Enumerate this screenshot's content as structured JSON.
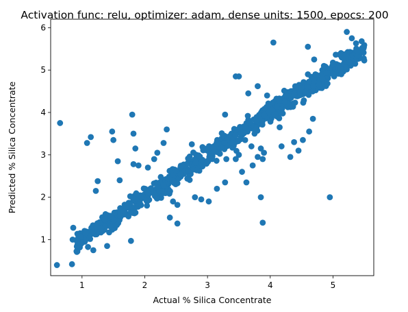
{
  "chart_data": {
    "type": "scatter",
    "title": "Activation func: relu, optimizer: adam, dense units: 1500, epocs: 200",
    "xlabel": "Actual % Silica Concentrate",
    "ylabel": "Predicted % Silica Concentrate",
    "xlim": [
      0.5,
      5.65
    ],
    "ylim": [
      0.15,
      6.2
    ],
    "xticks": [
      1,
      2,
      3,
      4,
      5
    ],
    "yticks": [
      1,
      2,
      3,
      4,
      5,
      6
    ],
    "grid": false,
    "marker_color": "#1f77b4",
    "outliers": [
      [
        0.6,
        0.4
      ],
      [
        0.65,
        3.75
      ],
      [
        0.84,
        0.42
      ],
      [
        0.85,
        1.0
      ],
      [
        0.86,
        1.28
      ],
      [
        1.08,
        3.28
      ],
      [
        1.14,
        3.42
      ],
      [
        1.18,
        0.75
      ],
      [
        1.22,
        2.15
      ],
      [
        1.25,
        2.38
      ],
      [
        1.4,
        0.85
      ],
      [
        1.48,
        3.55
      ],
      [
        1.5,
        3.35
      ],
      [
        1.57,
        2.85
      ],
      [
        1.6,
        2.4
      ],
      [
        1.78,
        0.97
      ],
      [
        1.8,
        3.95
      ],
      [
        1.82,
        3.5
      ],
      [
        1.82,
        2.78
      ],
      [
        1.9,
        2.75
      ],
      [
        1.85,
        3.15
      ],
      [
        2.05,
        2.7
      ],
      [
        2.15,
        2.9
      ],
      [
        2.2,
        3.05
      ],
      [
        2.3,
        3.28
      ],
      [
        2.35,
        3.6
      ],
      [
        2.4,
        1.52
      ],
      [
        2.45,
        1.9
      ],
      [
        2.52,
        1.82
      ],
      [
        2.52,
        1.38
      ],
      [
        2.75,
        3.25
      ],
      [
        2.8,
        2.0
      ],
      [
        2.9,
        1.95
      ],
      [
        3.02,
        1.9
      ],
      [
        3.15,
        2.2
      ],
      [
        3.28,
        2.35
      ],
      [
        3.28,
        3.95
      ],
      [
        3.3,
        2.9
      ],
      [
        3.45,
        2.9
      ],
      [
        3.45,
        4.85
      ],
      [
        3.5,
        4.85
      ],
      [
        3.55,
        2.6
      ],
      [
        3.5,
        3.0
      ],
      [
        3.62,
        2.35
      ],
      [
        3.7,
        3.2
      ],
      [
        3.72,
        2.75
      ],
      [
        3.75,
        3.5
      ],
      [
        3.8,
        2.95
      ],
      [
        3.85,
        3.15
      ],
      [
        3.88,
        2.9
      ],
      [
        3.9,
        3.05
      ],
      [
        3.88,
        1.4
      ],
      [
        3.85,
        2.0
      ],
      [
        3.65,
        4.45
      ],
      [
        3.8,
        4.62
      ],
      [
        3.95,
        4.4
      ],
      [
        4.05,
        5.65
      ],
      [
        4.08,
        3.95
      ],
      [
        4.15,
        3.65
      ],
      [
        4.18,
        3.2
      ],
      [
        4.32,
        2.95
      ],
      [
        4.38,
        3.3
      ],
      [
        4.45,
        3.1
      ],
      [
        4.52,
        3.35
      ],
      [
        4.62,
        3.55
      ],
      [
        4.68,
        3.85
      ],
      [
        4.72,
        4.9
      ],
      [
        4.6,
        4.9
      ],
      [
        4.7,
        5.25
      ],
      [
        4.6,
        5.55
      ],
      [
        4.95,
        2.0
      ],
      [
        5.12,
        5.05
      ],
      [
        5.22,
        5.9
      ],
      [
        5.3,
        5.75
      ],
      [
        5.0,
        4.9
      ]
    ],
    "trend": {
      "x_range": [
        0.9,
        5.5
      ],
      "y_fit": [
        0.9,
        5.5
      ],
      "n_points": 850,
      "spread_sd": 0.12
    }
  }
}
